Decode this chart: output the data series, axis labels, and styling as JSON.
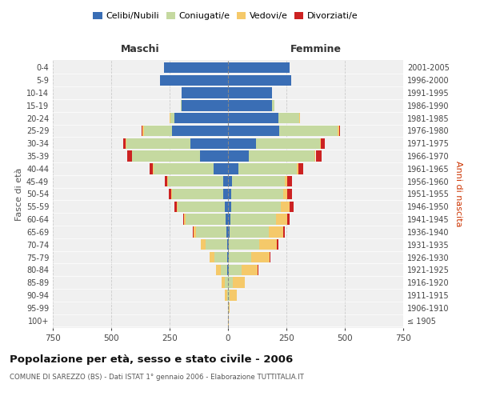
{
  "age_groups": [
    "100+",
    "95-99",
    "90-94",
    "85-89",
    "80-84",
    "75-79",
    "70-74",
    "65-69",
    "60-64",
    "55-59",
    "50-54",
    "45-49",
    "40-44",
    "35-39",
    "30-34",
    "25-29",
    "20-24",
    "15-19",
    "10-14",
    "5-9",
    "0-4"
  ],
  "birth_years": [
    "≤ 1905",
    "1906-1910",
    "1911-1915",
    "1916-1920",
    "1921-1925",
    "1926-1930",
    "1931-1935",
    "1936-1940",
    "1941-1945",
    "1946-1950",
    "1951-1955",
    "1956-1960",
    "1961-1965",
    "1966-1970",
    "1971-1975",
    "1976-1980",
    "1981-1985",
    "1986-1990",
    "1991-1995",
    "1996-2000",
    "2001-2005"
  ],
  "colors": {
    "celibi": "#3a6eb5",
    "coniugati": "#c5d9a0",
    "vedovi": "#f5c96a",
    "divorziati": "#cc2222"
  },
  "maschi": {
    "celibi": [
      0,
      0,
      0,
      1,
      2,
      3,
      5,
      8,
      10,
      15,
      20,
      22,
      60,
      120,
      160,
      240,
      230,
      200,
      200,
      290,
      275
    ],
    "coniugati": [
      0,
      0,
      5,
      12,
      30,
      55,
      90,
      130,
      170,
      200,
      220,
      235,
      260,
      290,
      275,
      120,
      15,
      2,
      0,
      0,
      0
    ],
    "vedovi": [
      0,
      0,
      10,
      15,
      20,
      20,
      20,
      10,
      8,
      5,
      3,
      2,
      2,
      2,
      2,
      5,
      5,
      0,
      0,
      0,
      0
    ],
    "divorziati": [
      0,
      0,
      0,
      0,
      0,
      0,
      2,
      2,
      5,
      8,
      10,
      10,
      15,
      20,
      10,
      5,
      0,
      0,
      0,
      0,
      0
    ]
  },
  "femmine": {
    "celibi": [
      0,
      0,
      0,
      1,
      2,
      3,
      5,
      8,
      10,
      12,
      15,
      18,
      45,
      90,
      120,
      220,
      215,
      190,
      190,
      270,
      265
    ],
    "coniugati": [
      0,
      2,
      8,
      20,
      55,
      95,
      130,
      165,
      195,
      215,
      220,
      225,
      250,
      280,
      275,
      250,
      90,
      10,
      0,
      0,
      0
    ],
    "vedovi": [
      2,
      5,
      30,
      50,
      70,
      80,
      75,
      65,
      50,
      35,
      20,
      12,
      8,
      5,
      3,
      5,
      2,
      0,
      0,
      0,
      0
    ],
    "divorziati": [
      0,
      0,
      0,
      2,
      2,
      3,
      5,
      5,
      10,
      18,
      18,
      18,
      20,
      25,
      15,
      5,
      0,
      0,
      0,
      0,
      0
    ]
  },
  "title": "Popolazione per età, sesso e stato civile - 2006",
  "subtitle": "COMUNE DI SAREZZO (BS) - Dati ISTAT 1° gennaio 2006 - Elaborazione TUTTITALIA.IT",
  "xlabel_left": "Maschi",
  "xlabel_right": "Femmine",
  "ylabel_left": "Fasce di età",
  "ylabel_right": "Anni di nascita",
  "xlim": 750,
  "legend_labels": [
    "Celibi/Nubili",
    "Coniugati/e",
    "Vedovi/e",
    "Divorziati/e"
  ],
  "bg_color": "#f0f0f0",
  "grid_color": "#cccccc"
}
